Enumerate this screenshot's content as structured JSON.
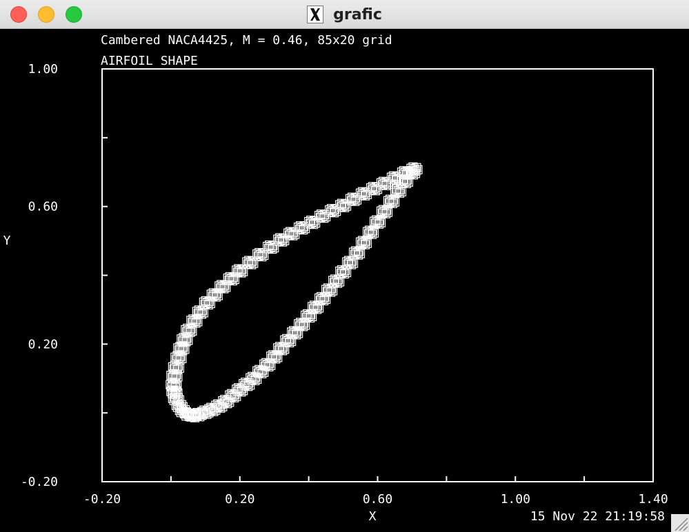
{
  "window": {
    "title": "grafic"
  },
  "icons": {
    "close": "close-dot",
    "minimize": "minimize-dot",
    "zoom": "zoom-dot",
    "app": "x11-icon"
  },
  "colors": {
    "background": "#000000",
    "foreground": "#ffffff"
  },
  "footer": {
    "timestamp": "15 Nov 22 21:19:58"
  },
  "chart_data": {
    "type": "scatter",
    "header": "Cambered NACA4425, M = 0.46, 85x20 grid",
    "title": "AIRFOIL SHAPE",
    "xlabel": "X",
    "ylabel": "Y",
    "xlim": [
      -0.2,
      1.4
    ],
    "ylim": [
      -0.2,
      1.0
    ],
    "xticks": [
      "-0.20",
      "0.20",
      "0.60",
      "1.00",
      "1.40"
    ],
    "yticks": [
      "1.00",
      "0.60",
      "0.20",
      "-0.20"
    ],
    "xtick_values": [
      -0.2,
      0.2,
      0.6,
      1.0,
      1.4
    ],
    "ytick_values": [
      1.0,
      0.6,
      0.2,
      -0.2
    ],
    "xminor_values": [
      0.0,
      0.4,
      0.8,
      1.2
    ],
    "yminor_values": [
      0.8,
      0.4,
      0.0
    ],
    "grid": false,
    "marker": "square",
    "series": [
      {
        "name": "",
        "points": [
          [
            0.707,
            0.709
          ],
          [
            0.68,
            0.698
          ],
          [
            0.65,
            0.683
          ],
          [
            0.62,
            0.667
          ],
          [
            0.59,
            0.652
          ],
          [
            0.56,
            0.637
          ],
          [
            0.53,
            0.621
          ],
          [
            0.5,
            0.603
          ],
          [
            0.47,
            0.588
          ],
          [
            0.44,
            0.572
          ],
          [
            0.41,
            0.554
          ],
          [
            0.38,
            0.538
          ],
          [
            0.35,
            0.521
          ],
          [
            0.32,
            0.503
          ],
          [
            0.29,
            0.482
          ],
          [
            0.26,
            0.46
          ],
          [
            0.23,
            0.437
          ],
          [
            0.2,
            0.413
          ],
          [
            0.175,
            0.39
          ],
          [
            0.15,
            0.367
          ],
          [
            0.127,
            0.343
          ],
          [
            0.105,
            0.32
          ],
          [
            0.085,
            0.293
          ],
          [
            0.068,
            0.267
          ],
          [
            0.052,
            0.24
          ],
          [
            0.04,
            0.213
          ],
          [
            0.03,
            0.187
          ],
          [
            0.022,
            0.16
          ],
          [
            0.015,
            0.132
          ],
          [
            0.01,
            0.107
          ],
          [
            0.008,
            0.08
          ],
          [
            0.01,
            0.06
          ],
          [
            0.015,
            0.04
          ],
          [
            0.025,
            0.02
          ],
          [
            0.035,
            0.005
          ],
          [
            0.05,
            -0.005
          ],
          [
            0.065,
            -0.008
          ],
          [
            0.08,
            -0.005
          ],
          [
            0.1,
            0.002
          ],
          [
            0.12,
            0.01
          ],
          [
            0.14,
            0.02
          ],
          [
            0.16,
            0.033
          ],
          [
            0.18,
            0.05
          ],
          [
            0.2,
            0.067
          ],
          [
            0.22,
            0.083
          ],
          [
            0.24,
            0.1
          ],
          [
            0.26,
            0.12
          ],
          [
            0.28,
            0.14
          ],
          [
            0.3,
            0.163
          ],
          [
            0.32,
            0.187
          ],
          [
            0.34,
            0.21
          ],
          [
            0.36,
            0.233
          ],
          [
            0.38,
            0.257
          ],
          [
            0.4,
            0.282
          ],
          [
            0.42,
            0.307
          ],
          [
            0.44,
            0.332
          ],
          [
            0.46,
            0.357
          ],
          [
            0.48,
            0.383
          ],
          [
            0.5,
            0.41
          ],
          [
            0.52,
            0.437
          ],
          [
            0.54,
            0.465
          ],
          [
            0.56,
            0.495
          ],
          [
            0.58,
            0.525
          ],
          [
            0.6,
            0.555
          ],
          [
            0.62,
            0.585
          ],
          [
            0.64,
            0.615
          ],
          [
            0.66,
            0.645
          ],
          [
            0.68,
            0.673
          ],
          [
            0.7,
            0.698
          ]
        ]
      }
    ]
  }
}
